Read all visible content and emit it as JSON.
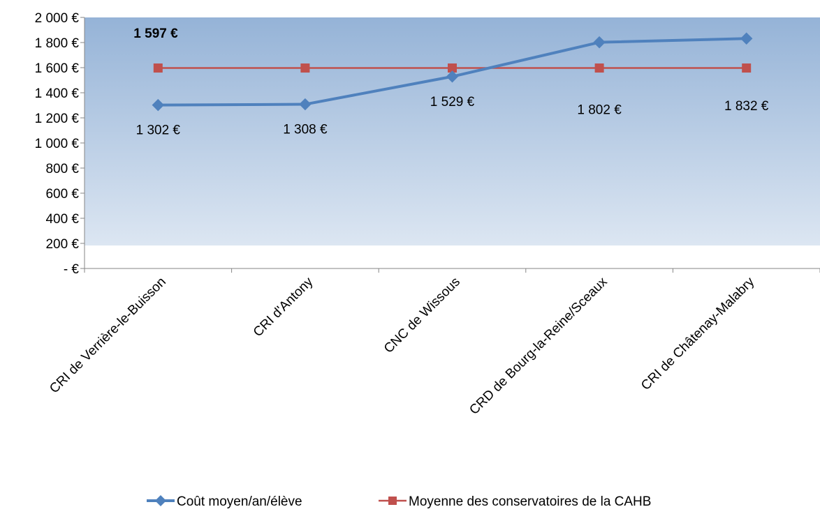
{
  "chart_data": {
    "type": "line",
    "categories": [
      "CRI de Verrière-le-Buisson",
      "CRI d'Antony",
      "CNC de Wissous",
      "CRD de Bourg-la-Reine/Sceaux",
      "CRI de Châtenay-Malabry"
    ],
    "series": [
      {
        "name": "Coût moyen/an/élève",
        "values": [
          1302,
          1308,
          1529,
          1802,
          1832
        ],
        "data_labels": [
          "1 302 €",
          "1 308 €",
          "1 529 €",
          "1 802 €",
          "1 832 €"
        ],
        "color": "#4F81BD",
        "marker": "diamond"
      },
      {
        "name": "Moyenne des conservatoires de la CAHB",
        "values": [
          1597,
          1597,
          1597,
          1597,
          1597
        ],
        "color": "#C0504D",
        "marker": "square"
      }
    ],
    "annotation": "1 597 €",
    "y_ticks": [
      0,
      200,
      400,
      600,
      800,
      1000,
      1200,
      1400,
      1600,
      1800,
      2000
    ],
    "y_tick_labels": [
      "-   €",
      "200 €",
      "400 €",
      "600 €",
      "800 €",
      "1 000 €",
      "1 200 €",
      "1 400 €",
      "1 600 €",
      "1 800 €",
      "2 000 €"
    ],
    "ylim": [
      0,
      2000
    ],
    "grid": false,
    "legend_position": "bottom",
    "background_gradient": [
      "#95B3D7",
      "#DCE6F2"
    ]
  }
}
